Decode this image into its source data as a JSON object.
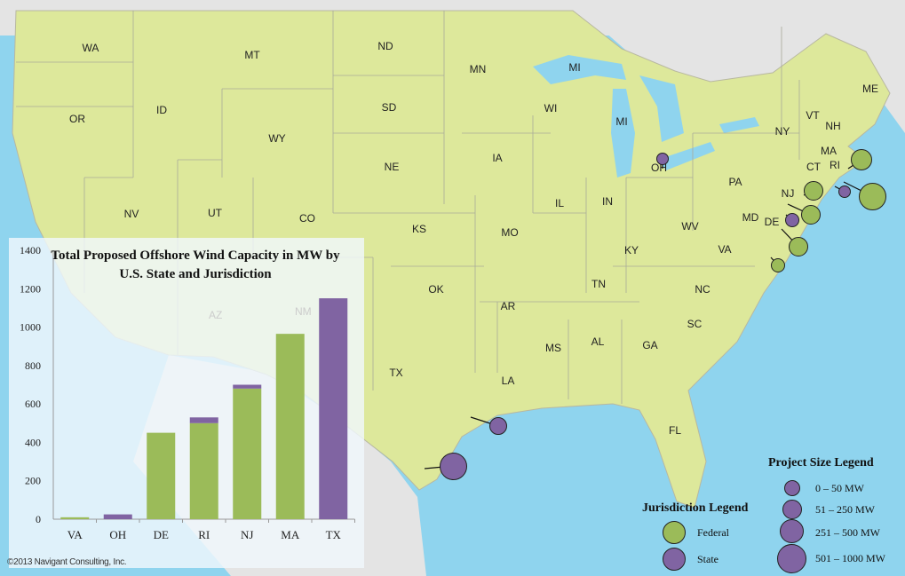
{
  "colors": {
    "federal": "#9bbb59",
    "state": "#8064a2",
    "land": "#dde89b",
    "water": "#8fd4ee",
    "foreign": "#e4e4e4"
  },
  "map": {
    "states": [
      "WA",
      "MT",
      "ND",
      "MN",
      "MI",
      "OR",
      "ID",
      "SD",
      "WI",
      "MI",
      "ME",
      "WY",
      "VT",
      "NH",
      "NY",
      "MA",
      "CT",
      "RI",
      "IA",
      "NE",
      "OH",
      "PA",
      "NV",
      "UT",
      "CO",
      "IL",
      "IN",
      "NJ",
      "MD",
      "DE",
      "WV",
      "KS",
      "MO",
      "KY",
      "VA",
      "OK",
      "TN",
      "NC",
      "AR",
      "SC",
      "MS",
      "AL",
      "GA",
      "TX",
      "LA",
      "FL",
      "AZ",
      "NM"
    ]
  },
  "chart_data": {
    "type": "bar",
    "stacked": true,
    "title": "Total Proposed Offshore Wind Capacity in MW by U.S. State and Jurisdiction",
    "categories": [
      "VA",
      "OH",
      "DE",
      "RI",
      "NJ",
      "MA",
      "TX"
    ],
    "series": [
      {
        "name": "Federal",
        "values": [
          10,
          0,
          450,
          500,
          680,
          965,
          0
        ]
      },
      {
        "name": "State",
        "values": [
          0,
          25,
          0,
          30,
          20,
          0,
          1150
        ]
      }
    ],
    "ylim": [
      0,
      1400
    ],
    "yticks": [
      "0",
      "200",
      "400",
      "600",
      "800",
      "1000",
      "1200",
      "1400"
    ],
    "xlabel": "",
    "ylabel": "",
    "grid": false
  },
  "jurisdiction_legend": {
    "title": "Jurisdiction  Legend",
    "items": [
      "Federal",
      "State"
    ]
  },
  "size_legend": {
    "title": "Project Size Legend",
    "items": [
      "0 – 50 MW",
      "51 – 250 MW",
      "251 – 500 MW",
      "501 – 1000 MW"
    ]
  },
  "copyright": "©2013 Navigant Consulting, Inc."
}
